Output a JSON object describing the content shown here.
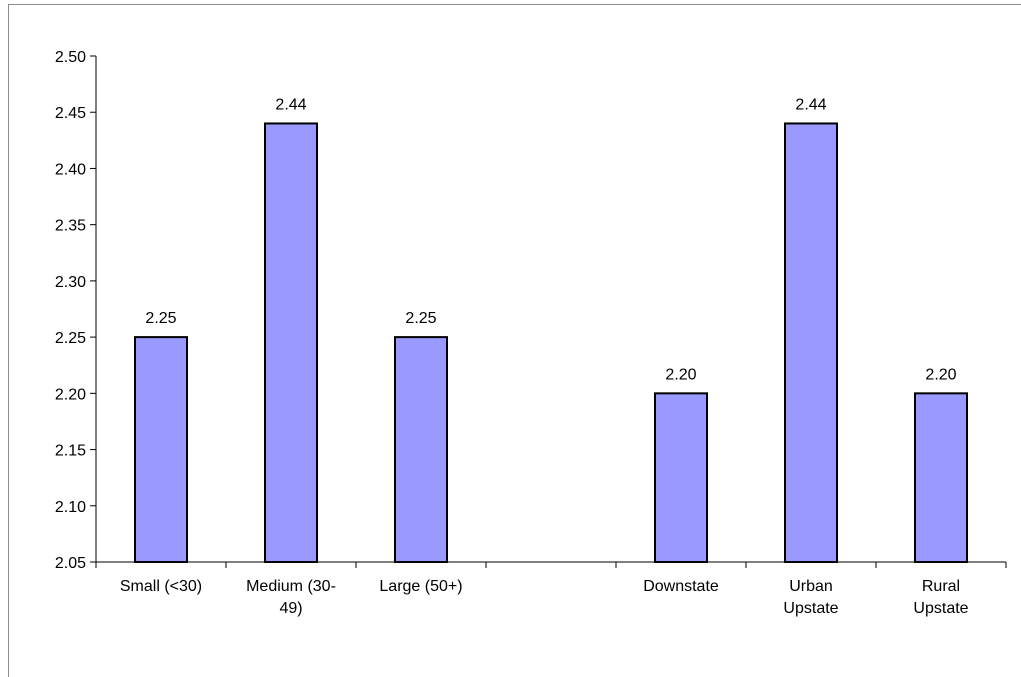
{
  "chart_data": {
    "type": "bar",
    "categories": [
      [
        "Small (<30)"
      ],
      [
        "Medium (30-",
        "49)"
      ],
      [
        "Large (50+)"
      ],
      [
        ""
      ],
      [
        "Downstate"
      ],
      [
        "Urban",
        "Upstate"
      ],
      [
        "Rural",
        "Upstate"
      ]
    ],
    "values": [
      2.25,
      2.44,
      2.25,
      null,
      2.2,
      2.44,
      2.2
    ],
    "data_labels": [
      "2.25",
      "2.44",
      "2.25",
      "",
      "2.20",
      "2.44",
      "2.20"
    ],
    "ylim": [
      2.05,
      2.5
    ],
    "ytick_step": 0.05,
    "yticks": [
      "2.05",
      "2.10",
      "2.15",
      "2.20",
      "2.25",
      "2.30",
      "2.35",
      "2.40",
      "2.45",
      "2.50"
    ],
    "title": "",
    "xlabel": "",
    "ylabel": "",
    "grid": false,
    "legend": "none",
    "colors": {
      "bar_fill": "#9999ff",
      "bar_stroke": "#000000",
      "axis": "#000000"
    }
  }
}
